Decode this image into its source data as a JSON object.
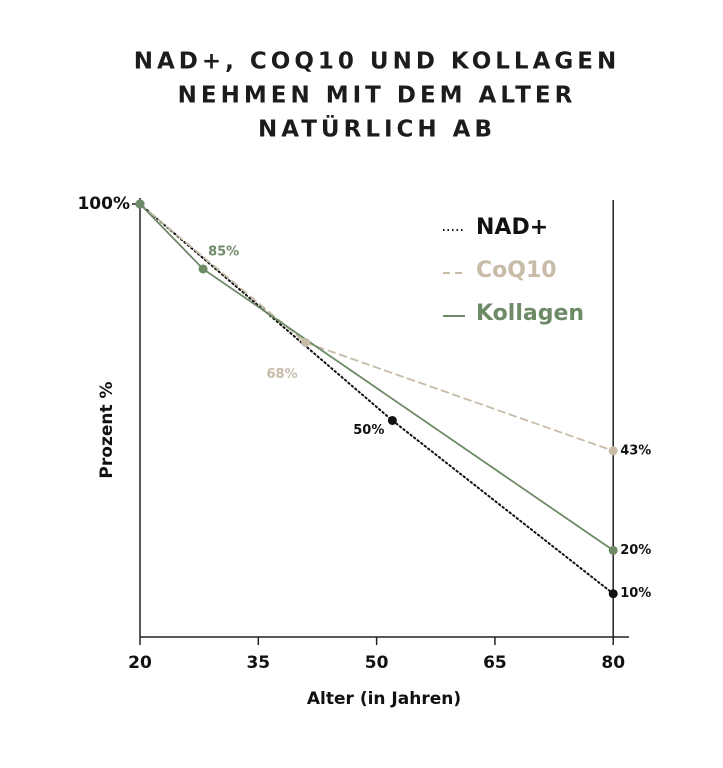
{
  "chart_data": {
    "type": "line",
    "title": [
      "NAD+, COQ10 UND KOLLAGEN",
      "NEHMEN MIT DEM ALTER",
      "NATÜRLICH AB"
    ],
    "x_label": "Alter (in Jahren)",
    "y_label": "Prozent %",
    "xlim": [
      20,
      82
    ],
    "xticks": [
      20,
      35,
      50,
      65,
      80
    ],
    "ylim": [
      0,
      100
    ],
    "yticks": [
      {
        "value": 100,
        "label": "100%"
      }
    ],
    "legend": "top-right",
    "series": [
      {
        "name": "NAD+",
        "color": "#111111",
        "dash": "dotted",
        "x": [
          20,
          52,
          80
        ],
        "values": [
          100,
          50,
          10
        ],
        "value_labels": [
          null,
          "50%",
          "10%"
        ]
      },
      {
        "name": "CoQ10",
        "color": "#c8bba8",
        "dash": "dashed",
        "x": [
          20,
          41,
          80
        ],
        "values": [
          100,
          68,
          43
        ],
        "value_labels": [
          null,
          "68%",
          "43%"
        ]
      },
      {
        "name": "Kollagen",
        "color": "#6e8b68",
        "dash": "solid",
        "x": [
          20,
          28,
          80
        ],
        "values": [
          100,
          85,
          20
        ],
        "value_labels": [
          null,
          "85%",
          "20%"
        ]
      }
    ]
  }
}
